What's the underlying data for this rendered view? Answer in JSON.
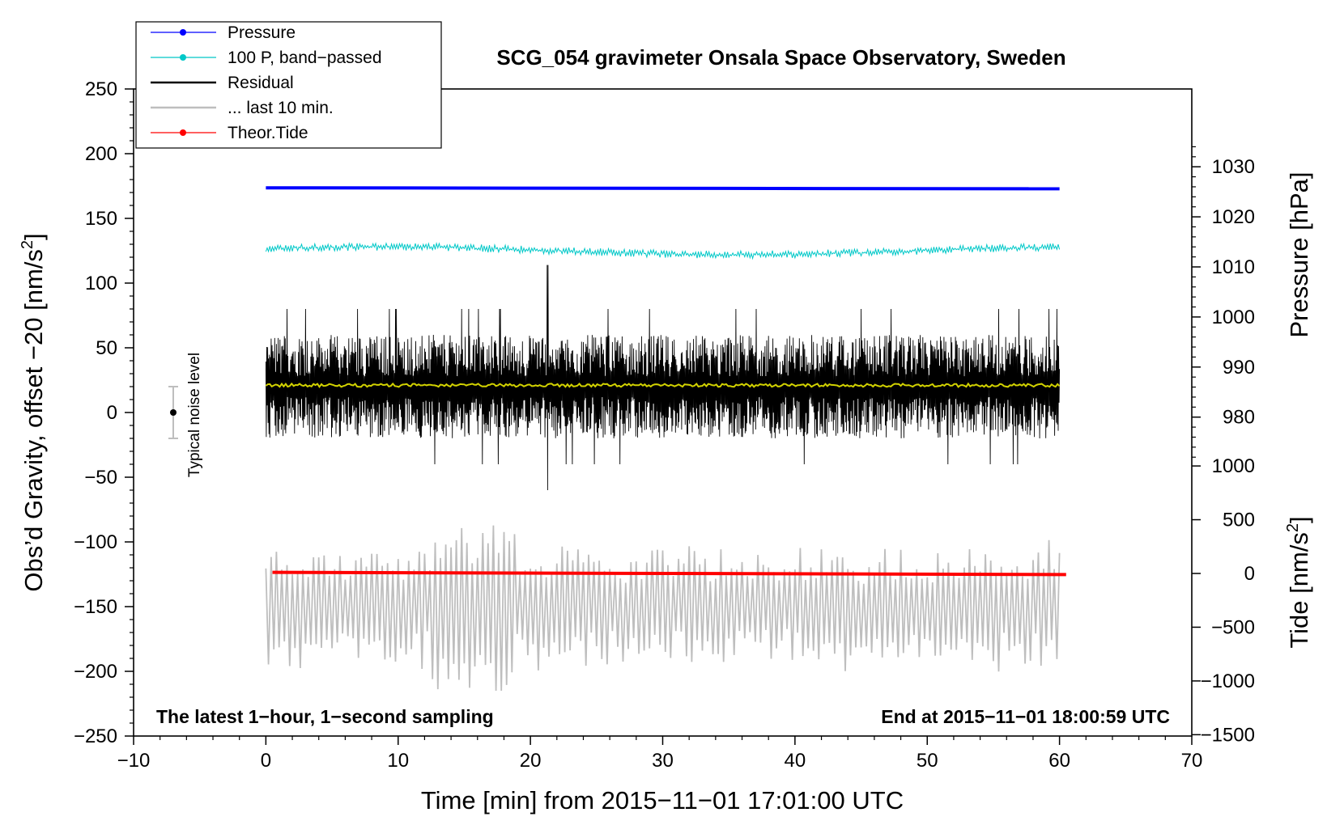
{
  "chart_data": {
    "type": "line",
    "title": "SCG_054 gravimeter Onsala Space Observatory, Sweden",
    "xlabel": "Time [min] from 2015−11−01 17:01:00 UTC",
    "ylabel_left": "Obs’d Gravity, offset −20 [nm/s",
    "ylabel_left_sup": "2",
    "ylabel_left_close": "]",
    "ylabel_right_pressure": "Pressure [hPa]",
    "ylabel_right_tide": "Tide [nm/s",
    "ylabel_right_tide_sup": "2",
    "ylabel_right_tide_close": "]",
    "xlim": [
      -10,
      70
    ],
    "ylim_left": [
      -250,
      250
    ],
    "ylim_pressure": [
      970,
      1035
    ],
    "ylim_tide": [
      -1500,
      1000
    ],
    "x_ticks": [
      {
        "value": -10,
        "label": "−10"
      },
      {
        "value": 0,
        "label": "0"
      },
      {
        "value": 10,
        "label": "10"
      },
      {
        "value": 20,
        "label": "20"
      },
      {
        "value": 30,
        "label": "30"
      },
      {
        "value": 40,
        "label": "40"
      },
      {
        "value": 50,
        "label": "50"
      },
      {
        "value": 60,
        "label": "60"
      },
      {
        "value": 70,
        "label": "70"
      }
    ],
    "y_left_ticks": [
      {
        "value": 250,
        "label": "250"
      },
      {
        "value": 200,
        "label": "200"
      },
      {
        "value": 150,
        "label": "150"
      },
      {
        "value": 100,
        "label": "100"
      },
      {
        "value": 50,
        "label": "50"
      },
      {
        "value": 0,
        "label": "0"
      },
      {
        "value": -50,
        "label": "−50"
      },
      {
        "value": -100,
        "label": "−100"
      },
      {
        "value": -150,
        "label": "−150"
      },
      {
        "value": -200,
        "label": "−200"
      },
      {
        "value": -250,
        "label": "−250"
      }
    ],
    "y_pressure_ticks": [
      {
        "value": 1030,
        "label": "1030"
      },
      {
        "value": 1020,
        "label": "1020"
      },
      {
        "value": 1010,
        "label": "1010"
      },
      {
        "value": 1000,
        "label": "1000"
      },
      {
        "value": 990,
        "label": "990"
      },
      {
        "value": 980,
        "label": "980"
      }
    ],
    "y_tide_ticks": [
      {
        "value": 1000,
        "label": "1000"
      },
      {
        "value": 500,
        "label": "500"
      },
      {
        "value": 0,
        "label": "0"
      },
      {
        "value": -500,
        "label": "−500"
      },
      {
        "value": -1000,
        "label": "−1000"
      },
      {
        "value": -1500,
        "label": "−1500"
      }
    ],
    "legend": [
      {
        "label": "Pressure",
        "color": "#0000ff",
        "marker": true
      },
      {
        "label": "100 P, band−passed",
        "color": "#00c8c8",
        "marker": true
      },
      {
        "label": "Residual",
        "color": "#000000",
        "marker": false
      },
      {
        "label": "... last 10 min.",
        "color": "#bebebe",
        "marker": false
      },
      {
        "label": "Theor.Tide",
        "color": "#ff0000",
        "marker": true
      }
    ],
    "annotations": {
      "bottom_left": "The latest 1−hour, 1−second sampling",
      "bottom_right": "End at 2015−11−01 18:00:59 UTC",
      "noise_label": "Typical noise level"
    },
    "noise_bar": {
      "x": -7,
      "center": 0,
      "half_range": 20
    },
    "series": [
      {
        "name": "Pressure",
        "color": "#0000ff",
        "axis": "pressure",
        "x_start": 0,
        "x_end": 60,
        "level_start": 1025.8,
        "level_end": 1025.6
      },
      {
        "name": "100 P, band−passed",
        "color": "#00c8c8",
        "axis": "left",
        "x_start": 0,
        "x_end": 60,
        "baseline": 125,
        "amplitude": 3
      },
      {
        "name": "Residual",
        "color": "#000000",
        "axis": "left",
        "x_start": 0,
        "x_end": 60,
        "baseline": 20,
        "typical_range": [
          -20,
          60
        ],
        "peak_max": 114,
        "peak_min": -60,
        "peak_at": 21.3
      },
      {
        "name": "Residual smoothed",
        "color": "#d2d200",
        "axis": "left",
        "x_start": 0,
        "x_end": 60,
        "baseline": 21
      },
      {
        "name": "... last 10 min.",
        "color": "#bebebe",
        "axis": "left",
        "x_start": 0,
        "x_end": 60,
        "baseline": -150,
        "range": [
          -215,
          -80
        ]
      },
      {
        "name": "Theor.Tide",
        "color": "#ff0000",
        "axis": "tide",
        "x_start": 0.5,
        "x_end": 60.5,
        "tide_start": 10,
        "tide_end": -10
      }
    ]
  }
}
